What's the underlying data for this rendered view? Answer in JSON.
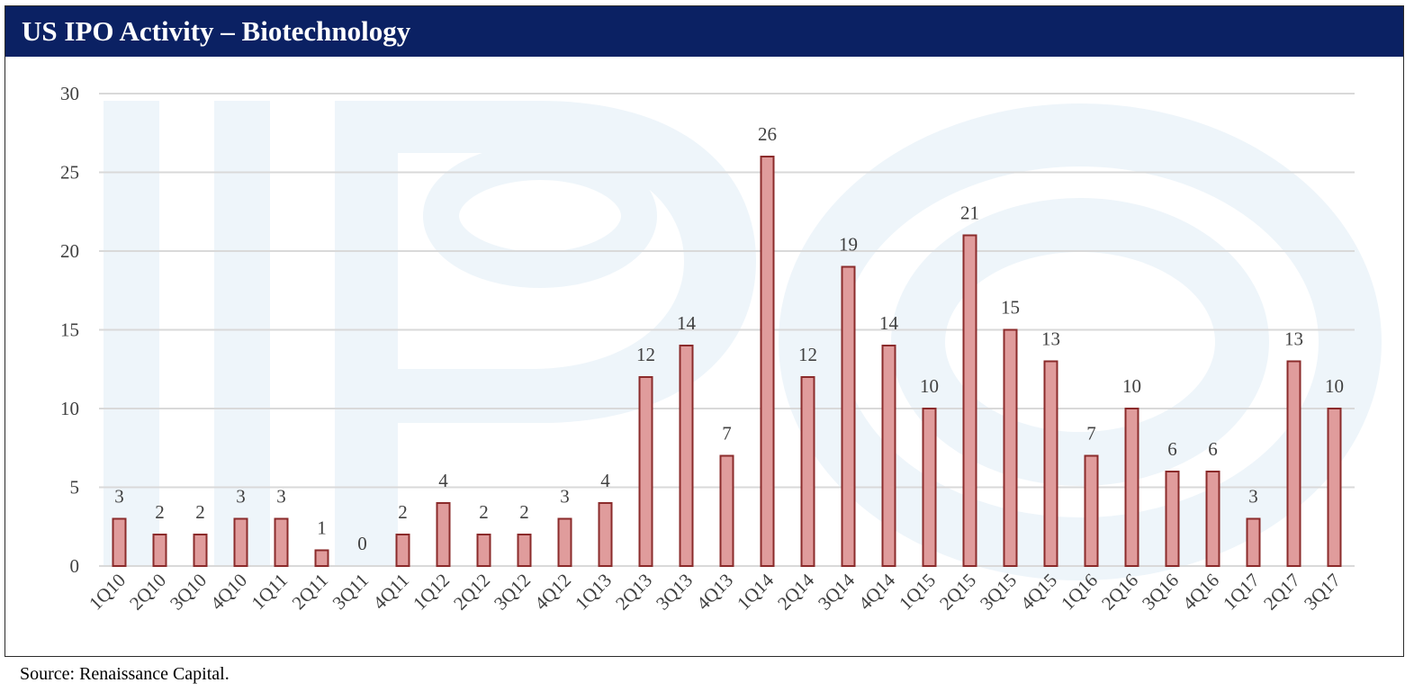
{
  "header": {
    "title": "US IPO Activity – Biotechnology"
  },
  "footer": {
    "source": "Source: Renaissance Capital."
  },
  "colors": {
    "title_bar": "#0b2163",
    "bar_fill": "#e09c9c",
    "bar_stroke": "#8b2b2b",
    "grid": "#d9d9d9",
    "watermark": "#eef5fa"
  },
  "chart_data": {
    "type": "bar",
    "title": "US IPO Activity – Biotechnology",
    "xlabel": "",
    "ylabel": "",
    "ylim": [
      0,
      30
    ],
    "yticks": [
      0,
      5,
      10,
      15,
      20,
      25,
      30
    ],
    "grid": true,
    "legend": "none",
    "categories": [
      "1Q10",
      "2Q10",
      "3Q10",
      "4Q10",
      "1Q11",
      "2Q11",
      "3Q11",
      "4Q11",
      "1Q12",
      "2Q12",
      "3Q12",
      "4Q12",
      "1Q13",
      "2Q13",
      "3Q13",
      "4Q13",
      "1Q14",
      "2Q14",
      "3Q14",
      "4Q14",
      "1Q15",
      "2Q15",
      "3Q15",
      "4Q15",
      "1Q16",
      "2Q16",
      "3Q16",
      "4Q16",
      "1Q17",
      "2Q17",
      "3Q17"
    ],
    "values": [
      3,
      2,
      2,
      3,
      3,
      1,
      0,
      2,
      4,
      2,
      2,
      3,
      4,
      12,
      14,
      7,
      26,
      12,
      19,
      14,
      10,
      21,
      15,
      13,
      7,
      10,
      6,
      6,
      3,
      13,
      10
    ],
    "data_labels": true
  }
}
